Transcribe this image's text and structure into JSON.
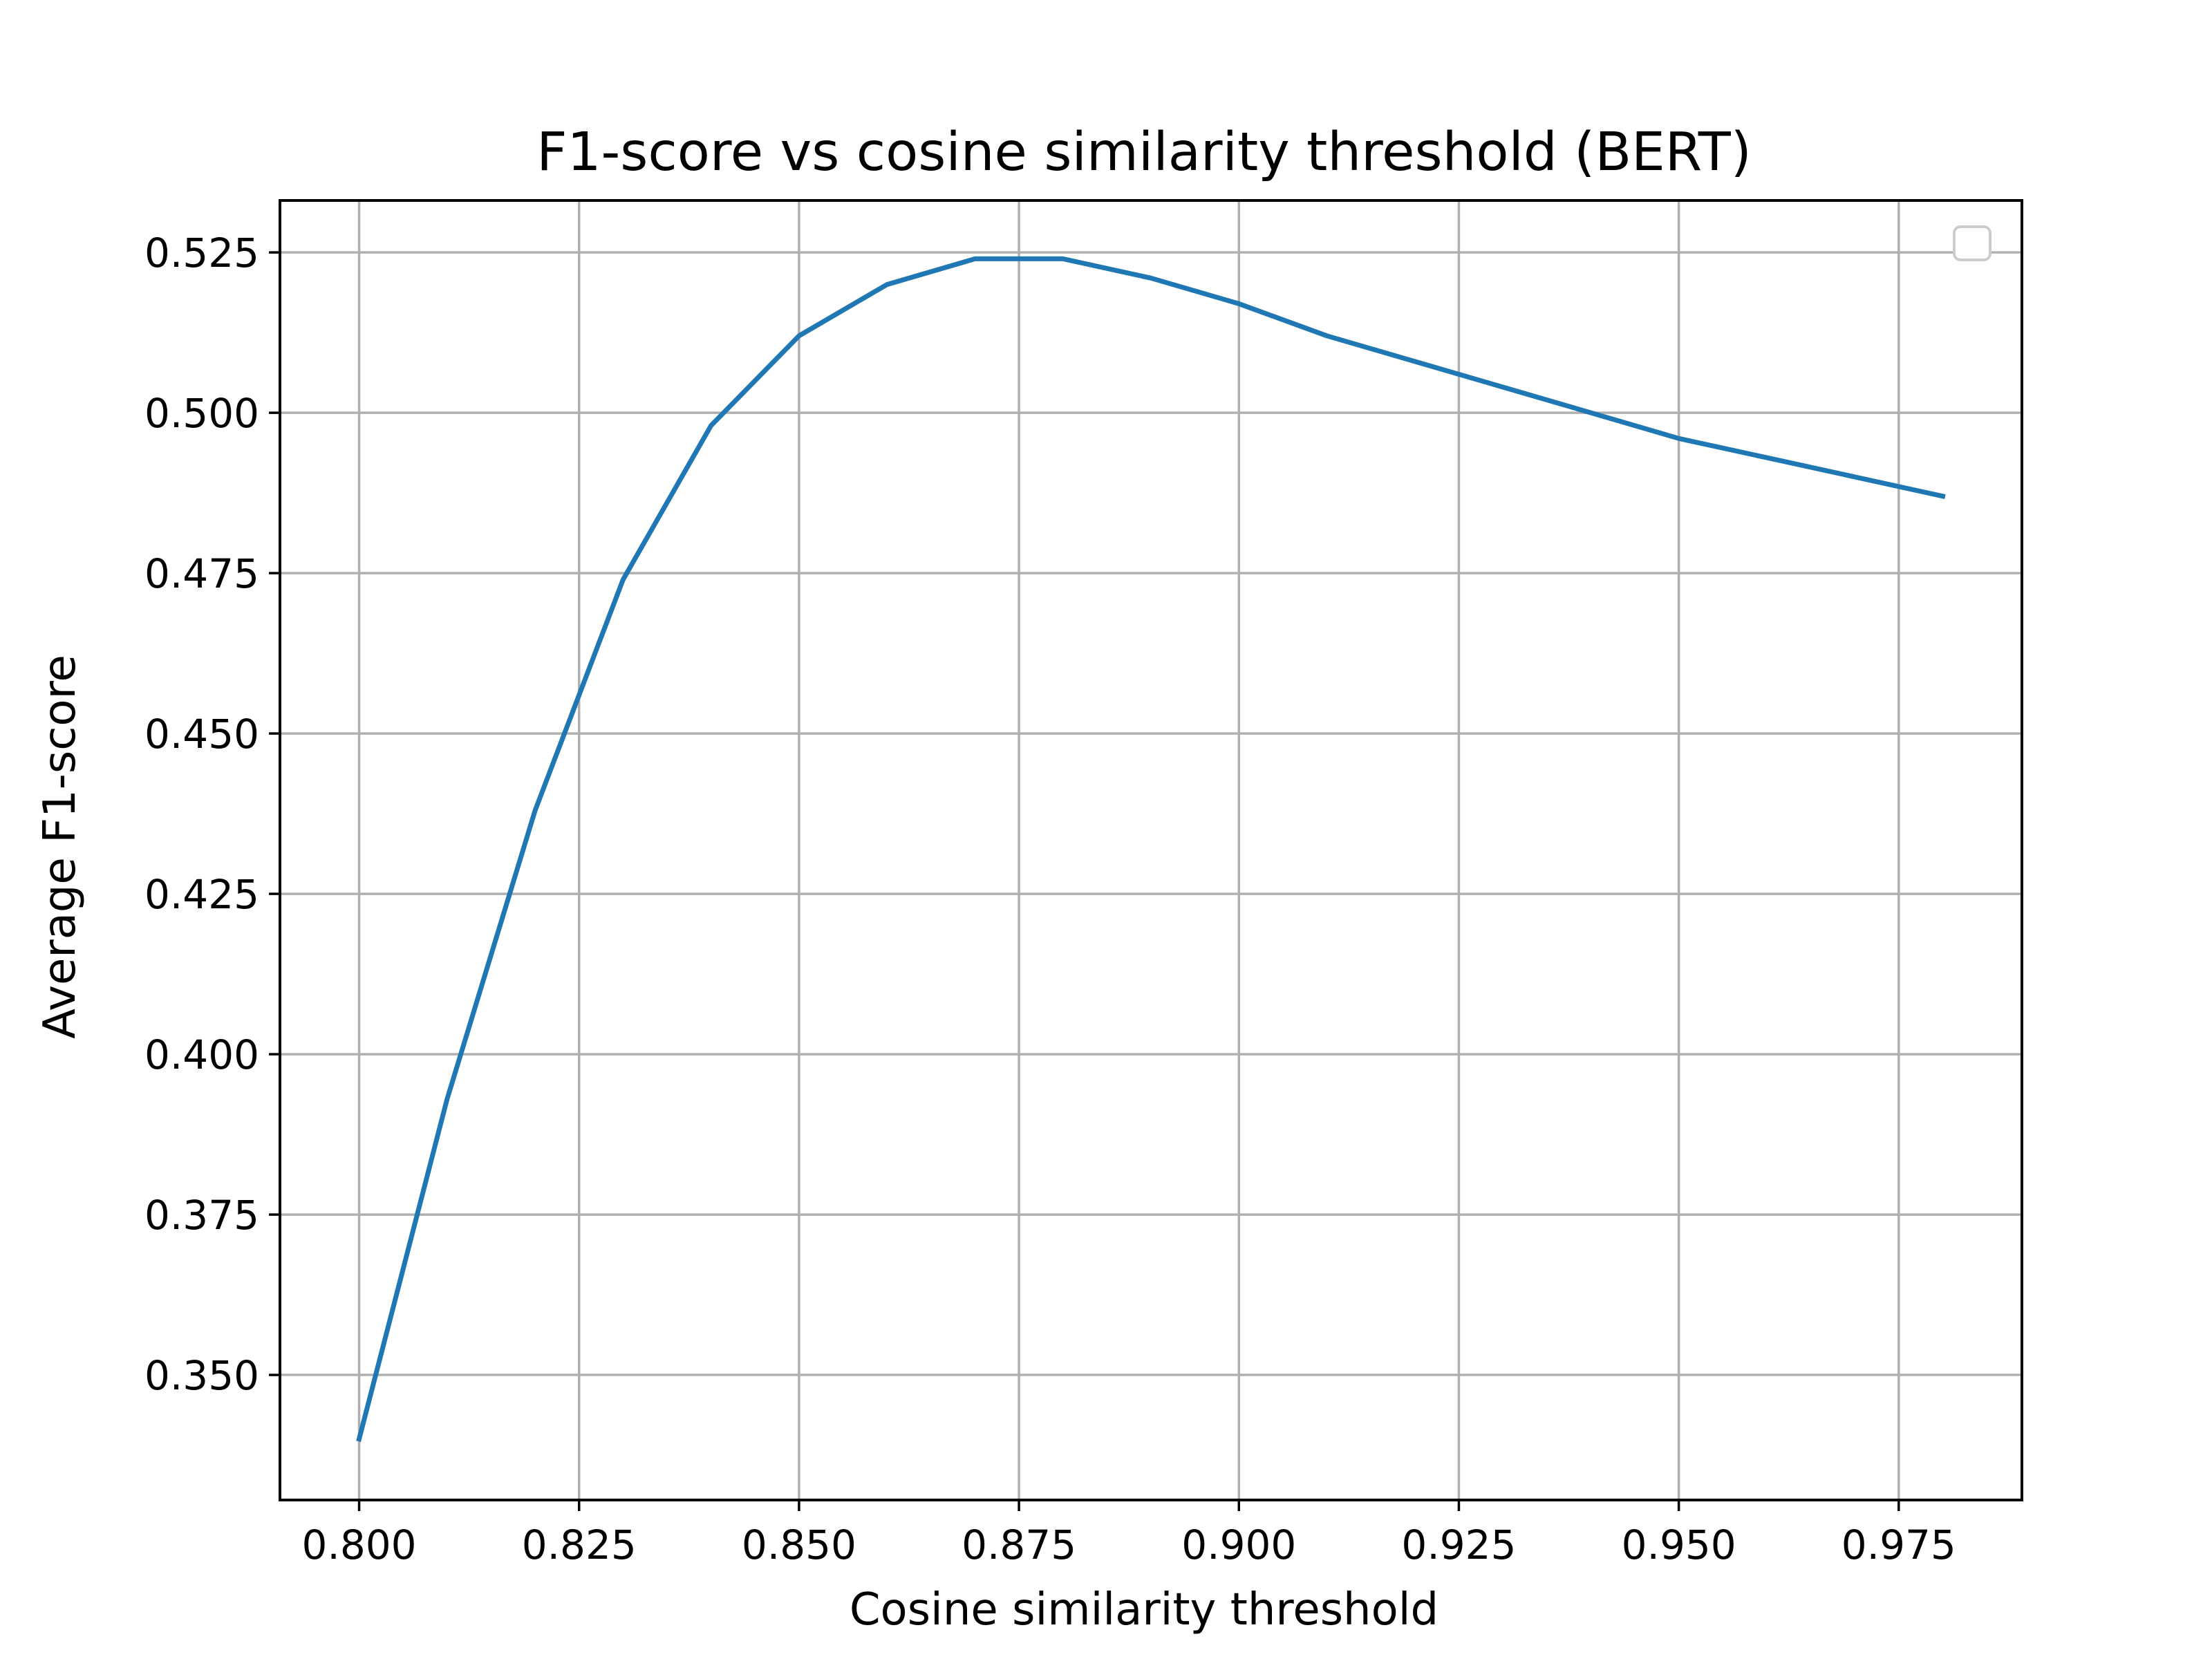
{
  "chart_data": {
    "type": "line",
    "title": "F1-score vs cosine similarity threshold (BERT)",
    "xlabel": "Cosine similarity threshold",
    "ylabel": "Average F1-score",
    "xlim": [
      0.791,
      0.989
    ],
    "ylim": [
      0.3305,
      0.5331
    ],
    "x_ticks": [
      0.8,
      0.825,
      0.85,
      0.875,
      0.9,
      0.925,
      0.95,
      0.975
    ],
    "x_tick_labels": [
      "0.800",
      "0.825",
      "0.850",
      "0.875",
      "0.900",
      "0.925",
      "0.950",
      "0.975"
    ],
    "y_ticks": [
      0.35,
      0.375,
      0.4,
      0.425,
      0.45,
      0.475,
      0.5,
      0.525
    ],
    "y_tick_labels": [
      "0.350",
      "0.375",
      "0.400",
      "0.425",
      "0.450",
      "0.475",
      "0.500",
      "0.525"
    ],
    "grid": true,
    "legend": "top-right",
    "series": [
      {
        "color": "#1f77b4",
        "x": [
          0.8,
          0.81,
          0.82,
          0.83,
          0.84,
          0.85,
          0.86,
          0.87,
          0.88,
          0.89,
          0.9,
          0.91,
          0.92,
          0.93,
          0.94,
          0.95,
          0.96,
          0.97,
          0.98
        ],
        "values": [
          0.34,
          0.393,
          0.438,
          0.474,
          0.498,
          0.512,
          0.52,
          0.524,
          0.524,
          0.521,
          0.517,
          0.512,
          0.508,
          0.504,
          0.5,
          0.496,
          0.493,
          0.49,
          0.487
        ]
      }
    ]
  }
}
